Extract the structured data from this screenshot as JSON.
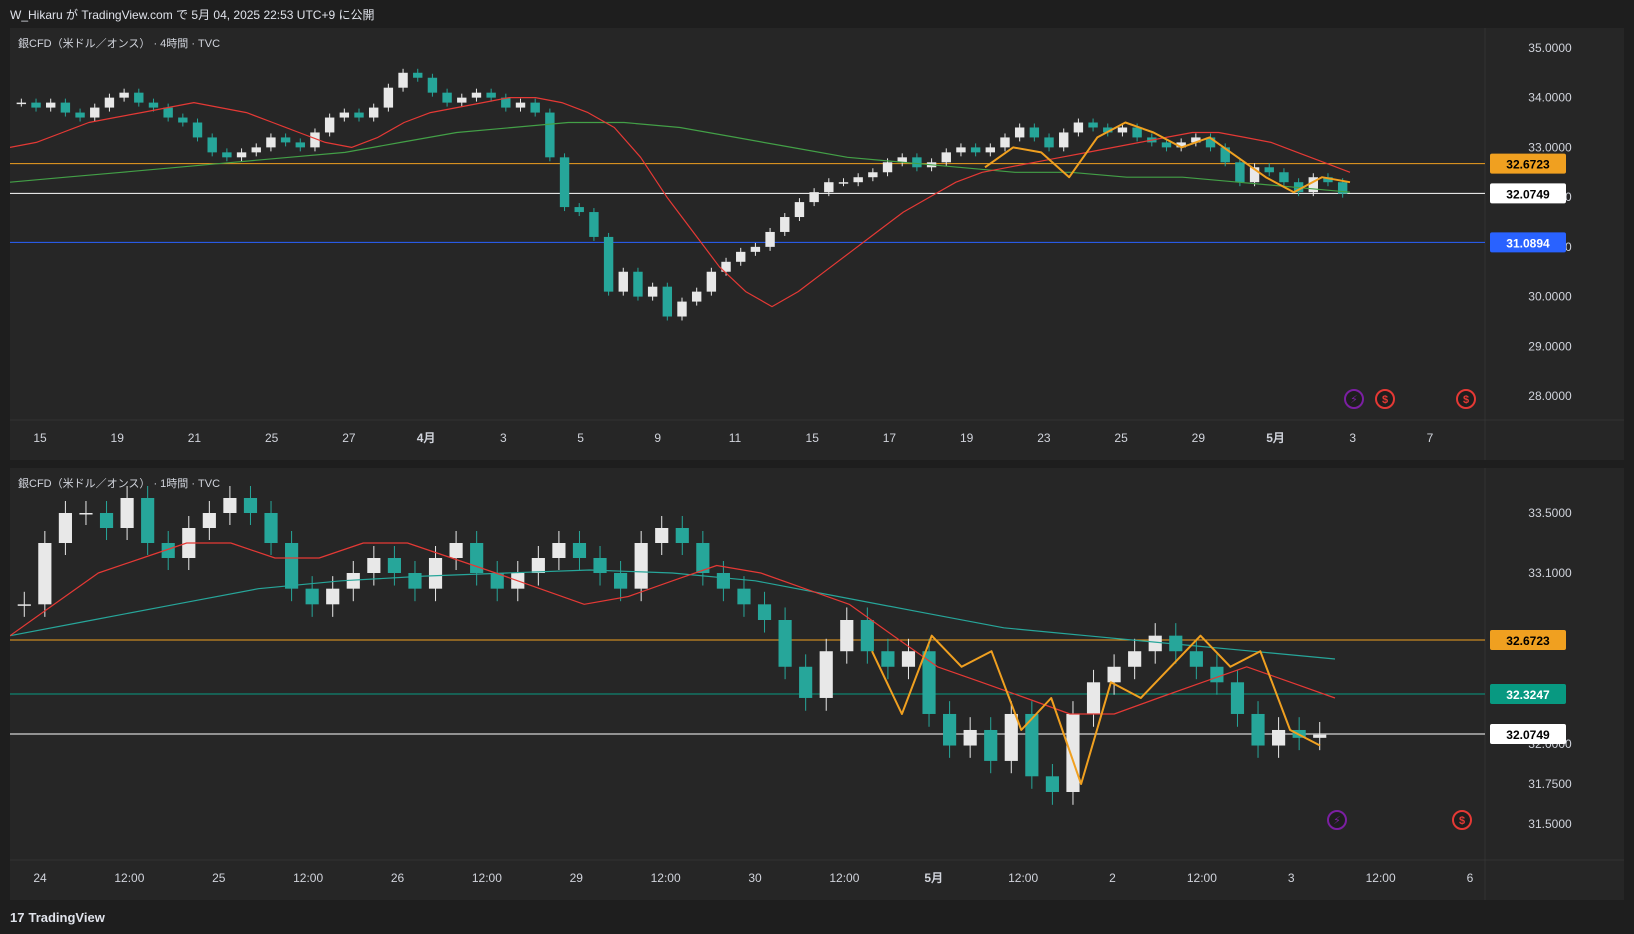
{
  "header": {
    "publish_text": "W_Hikaru が TradingView.com で 5月 04, 2025 22:53 UTC+9 に公開"
  },
  "footer": {
    "brand_logo": "17",
    "brand_name": "TradingView"
  },
  "colors": {
    "up": "#e8e8e8",
    "down": "#26a69a",
    "ema_short": "#e53935",
    "ema_long": "#43a047",
    "ema_long2": "#26a69a",
    "zigzag": "#f0a020",
    "orange_line": "#f0a020",
    "blue_line": "#2962ff",
    "teal_line": "#089981",
    "white_line": "#ffffff"
  },
  "chart_data": [
    {
      "type": "candlestick",
      "title": "銀CFD（米ドル／オンス） · 4時間 · TVC",
      "x_tick_labels": [
        "15",
        "19",
        "21",
        "25",
        "27",
        "4月",
        "3",
        "5",
        "9",
        "11",
        "15",
        "17",
        "19",
        "23",
        "25",
        "29",
        "5月",
        "3",
        "7"
      ],
      "y_tick_labels": [
        "35.0000",
        "34.0000",
        "33.0000",
        "32.0000",
        "31.0000",
        "30.0000",
        "29.0000",
        "28.0000"
      ],
      "ylim": [
        27.6,
        35.4
      ],
      "horizontal_lines": [
        {
          "value": 32.6723,
          "label": "32.6723",
          "color": "#f0a020"
        },
        {
          "value": 32.0749,
          "label": "32.0749",
          "color": "#ffffff"
        },
        {
          "value": 31.0894,
          "label": "31.0894",
          "color": "#2962ff"
        }
      ],
      "close_path": [
        33.9,
        33.8,
        33.9,
        33.7,
        33.6,
        33.8,
        34.0,
        34.1,
        33.9,
        33.8,
        33.6,
        33.5,
        33.2,
        32.9,
        32.8,
        32.9,
        33.0,
        33.2,
        33.1,
        33.0,
        33.3,
        33.6,
        33.7,
        33.6,
        33.8,
        34.2,
        34.5,
        34.4,
        34.1,
        33.9,
        34.0,
        34.1,
        34.0,
        33.8,
        33.9,
        33.7,
        32.8,
        31.8,
        31.7,
        31.2,
        30.1,
        30.5,
        30.0,
        30.2,
        29.6,
        29.9,
        30.1,
        30.5,
        30.7,
        30.9,
        31.0,
        31.3,
        31.6,
        31.9,
        32.1,
        32.3,
        32.3,
        32.4,
        32.5,
        32.7,
        32.8,
        32.6,
        32.7,
        32.9,
        33.0,
        32.9,
        33.0,
        33.2,
        33.4,
        33.2,
        33.0,
        33.3,
        33.5,
        33.4,
        33.3,
        33.4,
        33.2,
        33.1,
        33.0,
        33.1,
        33.2,
        33.0,
        32.7,
        32.3,
        32.6,
        32.5,
        32.3,
        32.1,
        32.4,
        32.3,
        32.07
      ],
      "ema_short_path": [
        33.0,
        33.1,
        33.3,
        33.5,
        33.6,
        33.7,
        33.8,
        33.9,
        33.8,
        33.7,
        33.5,
        33.3,
        33.1,
        33.0,
        33.2,
        33.5,
        33.7,
        33.8,
        33.9,
        34.0,
        34.0,
        33.9,
        33.7,
        33.4,
        32.8,
        32.0,
        31.3,
        30.6,
        30.1,
        29.8,
        30.1,
        30.5,
        30.9,
        31.3,
        31.7,
        32.0,
        32.3,
        32.5,
        32.6,
        32.7,
        32.8,
        32.9,
        33.0,
        33.1,
        33.2,
        33.3,
        33.3,
        33.2,
        33.1,
        32.9,
        32.7,
        32.5
      ],
      "ema_long_path": [
        32.3,
        32.4,
        32.5,
        32.6,
        32.7,
        32.8,
        32.9,
        33.1,
        33.3,
        33.4,
        33.5,
        33.5,
        33.4,
        33.2,
        33.0,
        32.8,
        32.7,
        32.6,
        32.5,
        32.5,
        32.4,
        32.4,
        32.3,
        32.2,
        32.1
      ],
      "zigzag_path": [
        32.6,
        33.0,
        32.9,
        32.4,
        33.2,
        33.5,
        33.3,
        33.0,
        33.2,
        32.8,
        32.4,
        32.1,
        32.4,
        32.3
      ]
    },
    {
      "type": "candlestick",
      "title": "銀CFD（米ドル／オンス） · 1時間 · TVC",
      "x_tick_labels": [
        "24",
        "12:00",
        "25",
        "12:00",
        "26",
        "12:00",
        "29",
        "12:00",
        "30",
        "12:00",
        "5月",
        "12:00",
        "2",
        "12:00",
        "3",
        "12:00",
        "6"
      ],
      "y_tick_labels": [
        "33.5000",
        "33.1000",
        "32.0000",
        "31.7500",
        "31.5000"
      ],
      "ylim": [
        31.45,
        33.75
      ],
      "horizontal_lines": [
        {
          "value": 32.6723,
          "label": "32.6723",
          "color": "#f0a020"
        },
        {
          "value": 32.3247,
          "label": "32.3247",
          "color": "#089981"
        },
        {
          "value": 32.0749,
          "label": "32.0749",
          "color": "#ffffff"
        }
      ],
      "close_path": [
        32.9,
        33.3,
        33.5,
        33.5,
        33.4,
        33.6,
        33.3,
        33.2,
        33.4,
        33.5,
        33.6,
        33.5,
        33.3,
        33.0,
        32.9,
        33.0,
        33.1,
        33.2,
        33.1,
        33.0,
        33.2,
        33.3,
        33.1,
        33.0,
        33.1,
        33.2,
        33.3,
        33.2,
        33.1,
        33.0,
        33.3,
        33.4,
        33.3,
        33.1,
        33.0,
        32.9,
        32.8,
        32.5,
        32.3,
        32.6,
        32.8,
        32.6,
        32.5,
        32.6,
        32.2,
        32.0,
        32.1,
        31.9,
        32.2,
        31.8,
        31.7,
        32.2,
        32.4,
        32.5,
        32.6,
        32.7,
        32.6,
        32.5,
        32.4,
        32.2,
        32.0,
        32.1,
        32.05,
        32.07
      ],
      "ema_short_path": [
        32.7,
        32.9,
        33.1,
        33.2,
        33.3,
        33.3,
        33.2,
        33.2,
        33.3,
        33.3,
        33.2,
        33.1,
        33.0,
        32.9,
        32.95,
        33.05,
        33.15,
        33.1,
        33.0,
        32.9,
        32.7,
        32.5,
        32.4,
        32.3,
        32.2,
        32.2,
        32.3,
        32.4,
        32.5,
        32.4,
        32.3
      ],
      "ema_long_path": [
        32.7,
        32.8,
        32.9,
        33.0,
        33.05,
        33.08,
        33.1,
        33.12,
        33.1,
        33.05,
        32.95,
        32.85,
        32.75,
        32.7,
        32.65,
        32.6,
        32.55
      ],
      "zigzag_path": [
        32.6,
        32.2,
        32.7,
        32.5,
        32.6,
        32.1,
        32.3,
        31.75,
        32.4,
        32.3,
        32.5,
        32.7,
        32.5,
        32.6,
        32.1,
        32.0
      ]
    }
  ]
}
